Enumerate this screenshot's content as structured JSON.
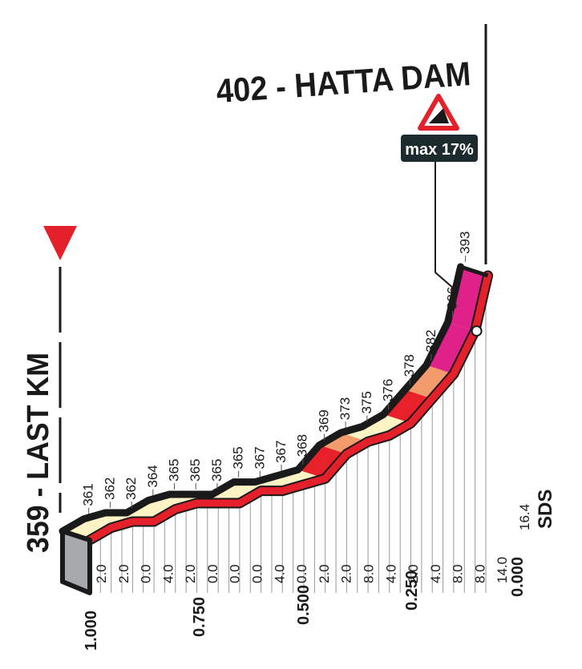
{
  "chart_data": {
    "type": "area",
    "title": "402 - HATTA DAM",
    "start_label": "359 - LAST KM",
    "max_gradient_label": "max 17%",
    "brand": "SDS",
    "altitude_labels": [
      "361",
      "362",
      "362",
      "364",
      "365",
      "365",
      "365",
      "365",
      "367",
      "367",
      "368",
      "369",
      "373",
      "375",
      "376",
      "378",
      "382",
      "386",
      "393"
    ],
    "gradient_labels": [
      "2.0",
      "2.0",
      "0.0",
      "4.0",
      "2.0",
      "0.0",
      "0.0",
      "0.0",
      "4.0",
      "0.0",
      "2.0",
      "2.0",
      "8.0",
      "4.0",
      "2.0",
      "4.0",
      "8.0",
      "8.0",
      "14.0",
      "16.4"
    ],
    "distance_ticks": [
      "1.000",
      "0.750",
      "0.500",
      "0.250",
      "0.000"
    ],
    "profile": {
      "distance_to_go": [
        1.0,
        0.95,
        0.9,
        0.85,
        0.8,
        0.75,
        0.7,
        0.65,
        0.6,
        0.55,
        0.5,
        0.45,
        0.4,
        0.35,
        0.3,
        0.25,
        0.2,
        0.15,
        0.1,
        0.07
      ],
      "altitude": [
        359,
        361,
        362,
        362,
        364,
        365,
        365,
        365,
        367,
        367,
        368,
        369,
        373,
        375,
        376,
        378,
        382,
        386,
        393,
        402
      ]
    },
    "colors": {
      "profile_fill": "#fdf3c4",
      "gradient_orange": "#f39b6d",
      "gradient_red": "#e8202a",
      "gradient_magenta": "#e0218a",
      "road_red": "#e4202a",
      "marker_red": "#e4202a",
      "side_gray": "#a7a9ac",
      "label_box": "#1c2b2d"
    }
  }
}
